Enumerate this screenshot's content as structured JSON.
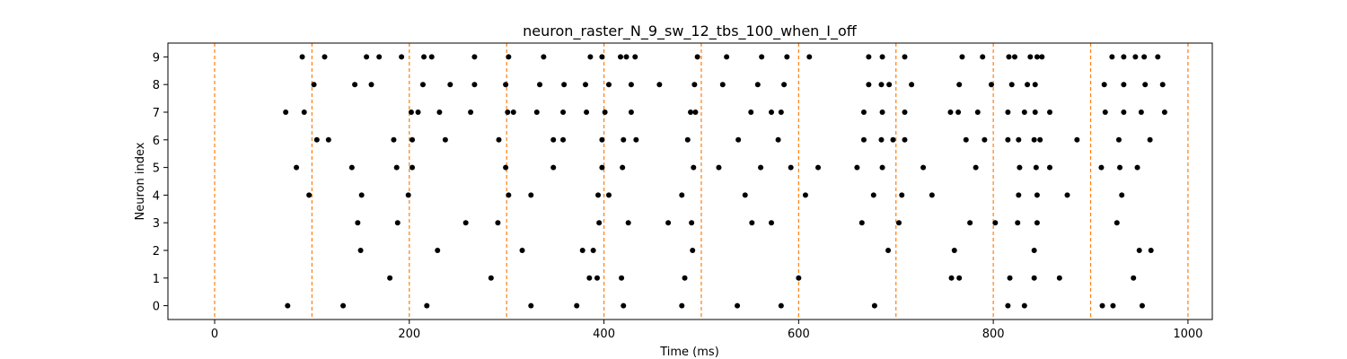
{
  "chart_data": {
    "type": "scatter",
    "title": "neuron_raster_N_9_sw_12_tbs_100_when_I_off",
    "xlabel": "Time (ms)",
    "ylabel": "Neuron index",
    "xlim": [
      -48,
      1025
    ],
    "ylim": [
      -0.5,
      9.5
    ],
    "xticks": [
      0,
      200,
      400,
      600,
      800,
      1000
    ],
    "yticks": [
      0,
      1,
      2,
      3,
      4,
      5,
      6,
      7,
      8,
      9
    ],
    "grid": false,
    "marker_color": "#000000",
    "vlines": {
      "x": [
        0,
        100,
        200,
        300,
        400,
        500,
        600,
        700,
        800,
        900,
        1000
      ],
      "style": "dashed",
      "color": "#ff7f0e"
    },
    "series": [
      {
        "neuron": 0,
        "x": [
          75,
          132,
          218,
          325,
          372,
          420,
          480,
          537,
          582,
          678,
          815,
          832,
          912,
          923,
          953
        ]
      },
      {
        "neuron": 1,
        "x": [
          180,
          284,
          385,
          393,
          418,
          483,
          600,
          757,
          765,
          817,
          842,
          868,
          944
        ]
      },
      {
        "neuron": 2,
        "x": [
          150,
          229,
          316,
          378,
          389,
          491,
          692,
          760,
          842,
          950,
          962
        ]
      },
      {
        "neuron": 3,
        "x": [
          147,
          188,
          258,
          291,
          395,
          425,
          466,
          490,
          552,
          572,
          665,
          703,
          776,
          802,
          825,
          845,
          927
        ]
      },
      {
        "neuron": 4,
        "x": [
          97,
          151,
          199,
          302,
          325,
          394,
          405,
          480,
          545,
          607,
          677,
          706,
          737,
          826,
          845,
          876,
          932
        ]
      },
      {
        "neuron": 5,
        "x": [
          84,
          141,
          187,
          203,
          299,
          348,
          398,
          419,
          492,
          518,
          561,
          592,
          620,
          660,
          686,
          728,
          782,
          827,
          844,
          858,
          911,
          930,
          948
        ]
      },
      {
        "neuron": 6,
        "x": [
          105,
          117,
          184,
          203,
          237,
          292,
          348,
          358,
          398,
          420,
          433,
          486,
          538,
          579,
          667,
          685,
          697,
          709,
          772,
          791,
          815,
          826,
          842,
          848,
          886,
          929,
          961
        ]
      },
      {
        "neuron": 7,
        "x": [
          73,
          92,
          202,
          209,
          231,
          263,
          301,
          307,
          331,
          358,
          382,
          401,
          428,
          489,
          494,
          551,
          572,
          582,
          667,
          686,
          709,
          756,
          764,
          784,
          815,
          832,
          843,
          858,
          915,
          934,
          952,
          976
        ]
      },
      {
        "neuron": 8,
        "x": [
          102,
          144,
          161,
          214,
          242,
          267,
          299,
          334,
          359,
          381,
          405,
          428,
          457,
          493,
          522,
          558,
          585,
          672,
          685,
          693,
          716,
          765,
          798,
          819,
          835,
          843,
          914,
          934,
          956,
          974
        ]
      },
      {
        "neuron": 9,
        "x": [
          90,
          113,
          156,
          169,
          192,
          215,
          223,
          267,
          302,
          338,
          386,
          398,
          417,
          423,
          432,
          496,
          526,
          562,
          588,
          611,
          672,
          686,
          709,
          768,
          789,
          816,
          822,
          838,
          845,
          850,
          922,
          934,
          946,
          955,
          969
        ]
      }
    ]
  }
}
